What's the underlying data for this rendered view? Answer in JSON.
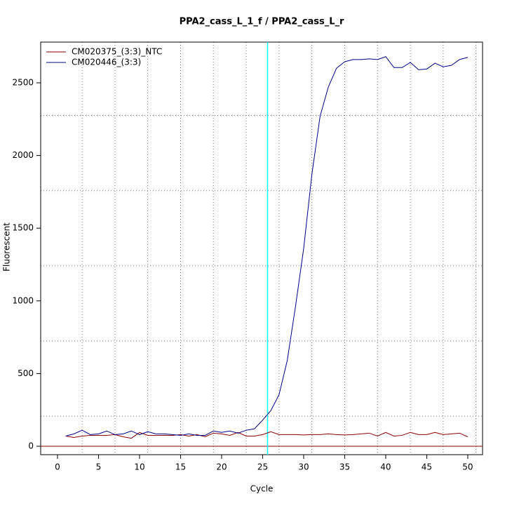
{
  "chart_data": {
    "type": "line",
    "title": "PPA2_cass_L_1_f / PPA2_cass_L_r",
    "xlabel": "Cycle",
    "ylabel": "Fluorescent",
    "x": [
      1,
      2,
      3,
      4,
      5,
      6,
      7,
      8,
      9,
      10,
      11,
      12,
      13,
      14,
      15,
      16,
      17,
      18,
      19,
      20,
      21,
      22,
      23,
      24,
      25,
      26,
      27,
      28,
      29,
      30,
      31,
      32,
      33,
      34,
      35,
      36,
      37,
      38,
      39,
      40,
      41,
      42,
      43,
      44,
      45,
      46,
      47,
      48,
      49,
      50
    ],
    "series": [
      {
        "name": "CM020375_(3:3)_NTC",
        "color": "#8b0000",
        "values": [
          70,
          60,
          70,
          75,
          75,
          75,
          80,
          65,
          55,
          95,
          75,
          75,
          75,
          75,
          80,
          70,
          80,
          65,
          90,
          85,
          75,
          95,
          70,
          70,
          80,
          100,
          80,
          80,
          80,
          78,
          80,
          80,
          85,
          80,
          78,
          80,
          85,
          90,
          70,
          95,
          70,
          75,
          95,
          80,
          80,
          95,
          80,
          85,
          90,
          65
        ]
      },
      {
        "name": "CM020446_(3:3)",
        "color": "#00008b",
        "values": [
          70,
          85,
          110,
          80,
          85,
          105,
          80,
          85,
          105,
          80,
          100,
          85,
          85,
          80,
          75,
          85,
          75,
          75,
          105,
          95,
          105,
          90,
          110,
          120,
          180,
          245,
          355,
          590,
          960,
          1360,
          1870,
          2270,
          2470,
          2600,
          2645,
          2660,
          2660,
          2665,
          2660,
          2680,
          2605,
          2605,
          2640,
          2590,
          2595,
          2635,
          2610,
          2620,
          2660,
          2675
        ]
      }
    ],
    "xlim": [
      -2.05,
      51.8
    ],
    "ylim": [
      -58,
      2780
    ],
    "xticks": [
      0,
      5,
      10,
      15,
      20,
      25,
      30,
      35,
      40,
      45,
      50
    ],
    "yticks": [
      0,
      500,
      1000,
      1500,
      2000,
      2500
    ],
    "xgrid": [
      3,
      7,
      11,
      15,
      19,
      23,
      27,
      31,
      35,
      39,
      43,
      47,
      51
    ],
    "ygrid": [
      207,
      724,
      1241,
      1758,
      2275
    ],
    "threshold_cycle": 25.6,
    "baseline": 0,
    "legend": "top-left"
  }
}
